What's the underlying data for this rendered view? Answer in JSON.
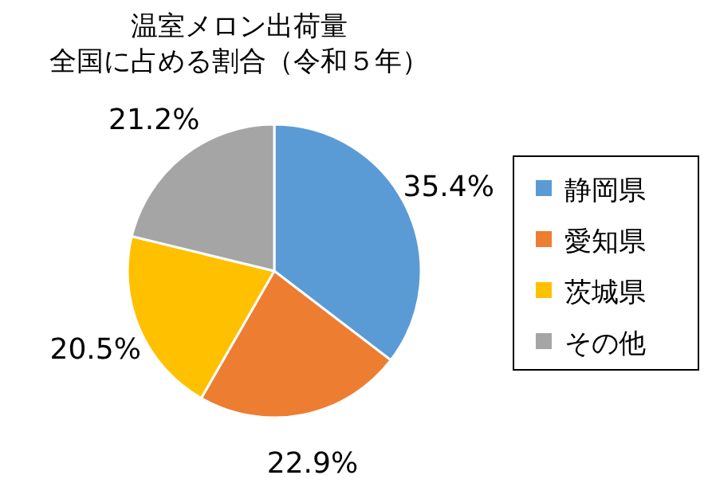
{
  "chart_data": {
    "type": "pie",
    "title": "温室メロン出荷量",
    "subtitle": "全国に占める割合（令和５年）",
    "categories": [
      "静岡県",
      "愛知県",
      "茨城県",
      "その他"
    ],
    "values": [
      35.4,
      22.9,
      20.5,
      21.2
    ],
    "colors": [
      "#5b9bd5",
      "#ed7d31",
      "#ffc000",
      "#a5a5a5"
    ],
    "value_labels": [
      "35.4%",
      "22.9%",
      "20.5%",
      "21.2%"
    ],
    "legend": "right"
  }
}
